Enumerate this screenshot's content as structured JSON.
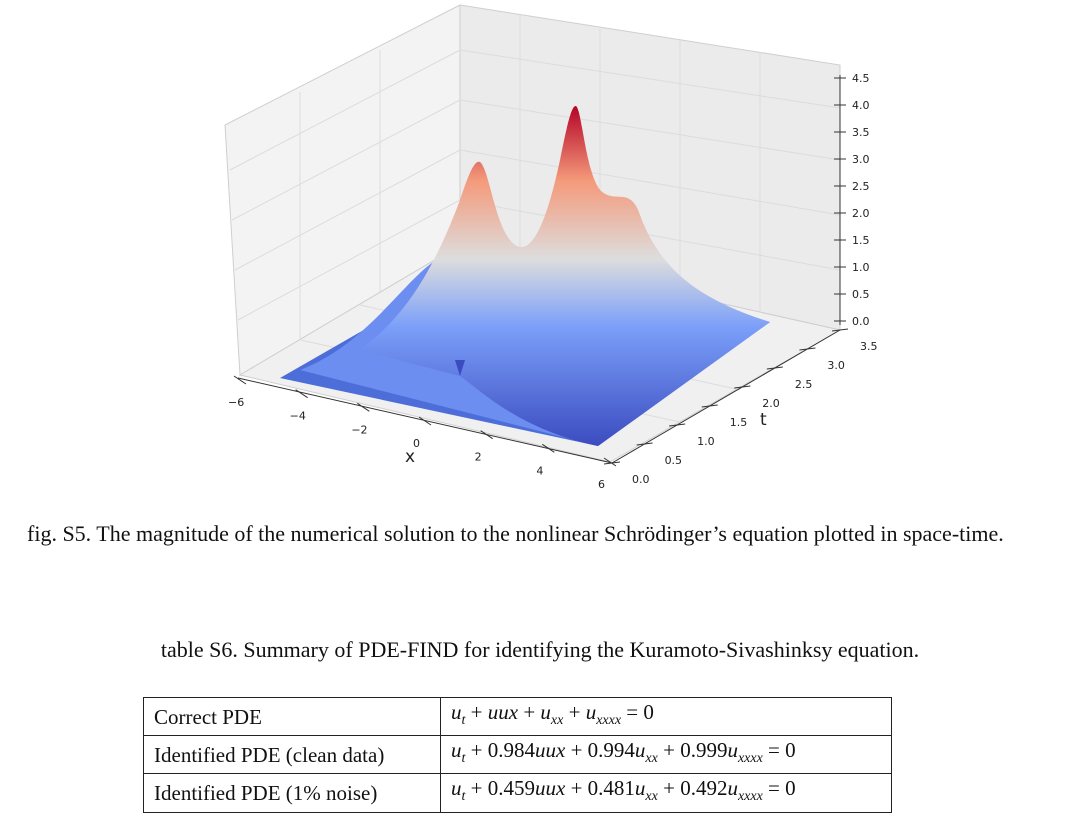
{
  "figure": {
    "caption": "fig. S5. The magnitude of the numerical solution to the nonlinear Schrödinger’s equation plotted in space-time.",
    "chart_data": {
      "type": "surface",
      "title": "",
      "xlabel": "x",
      "ylabel": "t",
      "zlabel": "",
      "x_ticks": [
        "−6",
        "−4",
        "−2",
        "0",
        "2",
        "4",
        "6"
      ],
      "t_ticks": [
        "0.0",
        "0.5",
        "1.0",
        "1.5",
        "2.0",
        "2.5",
        "3.0",
        "3.5"
      ],
      "z_ticks": [
        "0.0",
        "0.5",
        "1.0",
        "1.5",
        "2.0",
        "2.5",
        "3.0",
        "3.5",
        "4.0",
        "4.5"
      ],
      "xlim": [
        -6,
        6
      ],
      "tlim": [
        0,
        3.5
      ],
      "zlim": [
        0,
        4.5
      ],
      "colormap": "coolwarm",
      "peaks": [
        {
          "x": -1.5,
          "t": 1.6,
          "z": 3.6
        },
        {
          "x": 2.0,
          "t": 1.6,
          "z": 4.0
        }
      ]
    }
  },
  "table": {
    "title": "table S6. Summary of PDE-FIND for identifying the Kuramoto-Sivashinksy equation.",
    "rows": [
      {
        "label": "Correct PDE",
        "equation": "u_t + uu_x + u_xx + u_xxxx = 0"
      },
      {
        "label": "Identified PDE (clean data)",
        "equation": "u_t + 0.984uu_x + 0.994u_xx + 0.999u_xxxx = 0"
      },
      {
        "label": "Identified PDE (1% noise)",
        "equation": "u_t + 0.459uu_x + 0.481u_xx + 0.492u_xxxx = 0"
      }
    ]
  }
}
